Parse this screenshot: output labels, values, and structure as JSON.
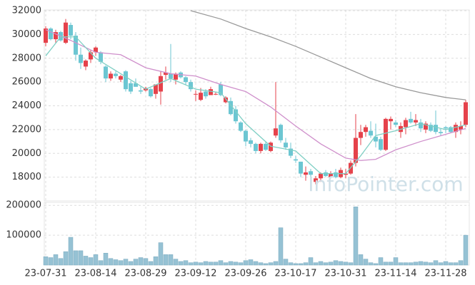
{
  "chart_data": {
    "type": "candlestick",
    "categories": [
      "23-07-31",
      null,
      null,
      null,
      null,
      null,
      null,
      null,
      null,
      null,
      "23-08-14",
      null,
      null,
      null,
      null,
      null,
      null,
      null,
      null,
      null,
      "23-08-29",
      null,
      null,
      null,
      null,
      null,
      null,
      null,
      null,
      null,
      "23-09-12",
      null,
      null,
      null,
      null,
      null,
      null,
      null,
      null,
      null,
      "23-09-26",
      null,
      null,
      null,
      null,
      null,
      null,
      null,
      null,
      null,
      "23-10-17",
      null,
      null,
      null,
      null,
      null,
      null,
      null,
      null,
      null,
      "23-10-31",
      null,
      null,
      null,
      null,
      null,
      null,
      null,
      null,
      null,
      "23-11-14",
      null,
      null,
      null,
      null,
      null,
      null,
      null,
      null,
      null,
      "23-11-28",
      null,
      null,
      null,
      null
    ],
    "open": [
      29300,
      30500,
      29600,
      30200,
      29300,
      30800,
      29900,
      28300,
      27300,
      27900,
      28500,
      28500,
      27300,
      26300,
      26700,
      26200,
      26900,
      25900,
      25900,
      25300,
      25300,
      25400,
      25000,
      25200,
      26600,
      26700,
      26200,
      26800,
      26400,
      26000,
      25000,
      24500,
      25200,
      24900,
      25000,
      25800,
      24300,
      24400,
      23700,
      22600,
      21900,
      21100,
      20800,
      20200,
      20800,
      20200,
      21500,
      22400,
      20900,
      20400,
      19500,
      19300,
      18200,
      18500,
      17600,
      17900,
      18400,
      18000,
      18400,
      18000,
      18200,
      18300,
      19200,
      21300,
      21800,
      21900,
      21400,
      21200,
      20300,
      22700,
      22600,
      21800,
      22200,
      22900,
      22600,
      22600,
      22000,
      22400,
      22400,
      21800,
      22200,
      22200,
      21800,
      22000,
      22400
    ],
    "high": [
      30700,
      30600,
      30400,
      30300,
      31300,
      31000,
      30200,
      28900,
      27900,
      28700,
      29000,
      28600,
      27400,
      26900,
      26900,
      26600,
      27000,
      26100,
      26300,
      25600,
      25600,
      25500,
      25800,
      26900,
      27300,
      29200,
      26800,
      26900,
      26500,
      26200,
      25300,
      25500,
      25400,
      25600,
      25200,
      26000,
      24800,
      24700,
      24000,
      22700,
      22000,
      21300,
      20900,
      20900,
      21000,
      21000,
      26000,
      22500,
      21300,
      20900,
      19800,
      19300,
      18900,
      18700,
      18100,
      18400,
      18600,
      18500,
      18700,
      18800,
      18700,
      19400,
      23300,
      22400,
      22400,
      22700,
      22500,
      21400,
      23000,
      23100,
      22800,
      22600,
      23000,
      23500,
      23300,
      22900,
      22700,
      22600,
      23600,
      22100,
      22300,
      22300,
      22600,
      22700,
      24500
    ],
    "low": [
      29000,
      29500,
      29300,
      29400,
      29200,
      29600,
      27800,
      27100,
      27000,
      27600,
      28200,
      27500,
      26000,
      26100,
      26300,
      26000,
      25200,
      25000,
      25600,
      25000,
      25200,
      24700,
      24600,
      24100,
      26200,
      26000,
      25800,
      26300,
      25800,
      25200,
      24400,
      24400,
      24600,
      24900,
      24900,
      24800,
      24200,
      23200,
      22500,
      21800,
      20600,
      20500,
      20000,
      20000,
      20200,
      20100,
      21300,
      20900,
      20300,
      19600,
      19200,
      18000,
      17700,
      18000,
      17400,
      17600,
      18000,
      17900,
      17900,
      17900,
      17900,
      18200,
      18900,
      20700,
      21400,
      21300,
      20500,
      20200,
      20200,
      22000,
      22200,
      21300,
      21600,
      22500,
      22300,
      21800,
      21700,
      21800,
      21600,
      21500,
      21700,
      21700,
      21300,
      21600,
      22200
    ],
    "close": [
      30500,
      29600,
      30200,
      29500,
      31000,
      29900,
      28300,
      27600,
      27800,
      28500,
      28900,
      27700,
      26300,
      26700,
      26500,
      26500,
      25400,
      25200,
      25600,
      25200,
      25500,
      24800,
      25800,
      26500,
      26800,
      26300,
      26700,
      26400,
      26000,
      25400,
      25000,
      25100,
      24800,
      25400,
      25000,
      24900,
      24700,
      23300,
      22700,
      21900,
      21000,
      20800,
      20200,
      20800,
      20300,
      20900,
      22100,
      21100,
      20500,
      19800,
      19400,
      18300,
      18400,
      18200,
      17900,
      18300,
      18100,
      18300,
      18000,
      18600,
      18300,
      19200,
      21300,
      21800,
      22200,
      21500,
      21000,
      20300,
      22900,
      22900,
      22400,
      22300,
      22800,
      22600,
      22800,
      22100,
      22500,
      21900,
      21800,
      21700,
      22100,
      21800,
      22400,
      22300,
      24300
    ],
    "up_color": "#e5424b",
    "down_color": "#6cc6d2",
    "ylim": [
      16000,
      32000
    ],
    "yticks": [
      18000,
      20000,
      22000,
      24000,
      26000,
      28000,
      30000,
      32000
    ],
    "grid": true,
    "lines": [
      {
        "color": "#999999",
        "x": [
          29,
          35,
          40,
          45,
          50,
          55,
          60,
          65,
          70,
          75,
          80,
          84
        ],
        "values": [
          32000,
          31300,
          30500,
          29800,
          29000,
          28100,
          27200,
          26300,
          25600,
          25100,
          24700,
          24500
        ]
      },
      {
        "color": "#cf8fcb",
        "x": [
          0,
          5,
          10,
          15,
          20,
          25,
          30,
          35,
          40,
          45,
          50,
          55,
          60,
          63,
          66,
          70,
          75,
          80,
          84
        ],
        "values": [
          30400,
          29500,
          28500,
          28300,
          27200,
          26700,
          26500,
          25800,
          25200,
          23900,
          22300,
          20800,
          19600,
          19400,
          19500,
          20300,
          21000,
          21600,
          22100
        ]
      },
      {
        "color": "#7fcfc4",
        "x": [
          0,
          3,
          6,
          10,
          15,
          20,
          25,
          30,
          35,
          40,
          45,
          50,
          55,
          60,
          63,
          66,
          70,
          75,
          80,
          84
        ],
        "values": [
          28200,
          29800,
          29800,
          28000,
          26700,
          25400,
          26300,
          25400,
          25100,
          22500,
          20600,
          20200,
          18300,
          18300,
          19800,
          21500,
          21900,
          22500,
          22000,
          22400
        ]
      }
    ],
    "volume": {
      "color": "#96c2d4",
      "ylim": [
        0,
        210000
      ],
      "yticks": [
        100000,
        200000
      ],
      "values": [
        28000,
        25000,
        35000,
        22000,
        45000,
        93000,
        48000,
        48000,
        30000,
        25000,
        35000,
        15000,
        40000,
        22000,
        18000,
        15000,
        20000,
        12000,
        20000,
        25000,
        22000,
        12000,
        28000,
        75000,
        35000,
        35000,
        20000,
        12000,
        15000,
        8000,
        10000,
        8000,
        12000,
        10000,
        10000,
        15000,
        8000,
        12000,
        10000,
        8000,
        15000,
        18000,
        12000,
        8000,
        5000,
        8000,
        12000,
        125000,
        20000,
        8000,
        5000,
        5000,
        8000,
        25000,
        8000,
        12000,
        8000,
        10000,
        15000,
        12000,
        10000,
        8000,
        195000,
        35000,
        20000,
        8000,
        5000,
        25000,
        10000,
        10000,
        25000,
        8000,
        8000,
        8000,
        10000,
        12000,
        10000,
        8000,
        15000,
        8000,
        12000,
        8000,
        8000,
        15000,
        100000
      ]
    },
    "watermark": "InfoPointer.com"
  }
}
